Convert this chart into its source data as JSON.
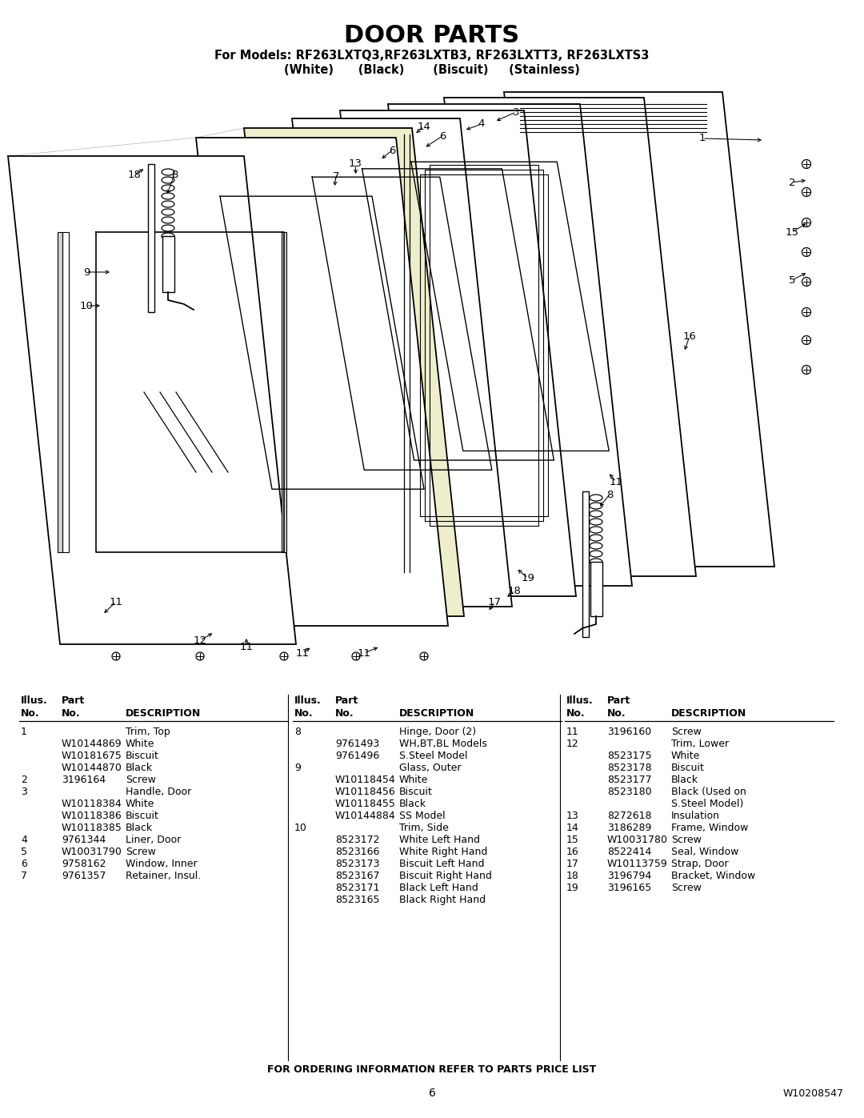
{
  "title": "DOOR PARTS",
  "subtitle1": "For Models: RF263LXTQ3,RF263LXTB3, RF263LXTT3, RF263LXTS3",
  "subtitle2": "(White)      (Black)       (Biscuit)     (Stainless)",
  "bg_color": "#ffffff",
  "title_fontsize": 22,
  "subtitle_fontsize": 11,
  "footer_note": "FOR ORDERING INFORMATION REFER TO PARTS PRICE LIST",
  "page_number": "6",
  "doc_number": "W10208547",
  "parts_col1": [
    [
      "1",
      "",
      "Trim, Top"
    ],
    [
      "",
      "W10144869",
      "White"
    ],
    [
      "",
      "W10181675",
      "Biscuit"
    ],
    [
      "",
      "W10144870",
      "Black"
    ],
    [
      "2",
      "3196164",
      "Screw"
    ],
    [
      "3",
      "",
      "Handle, Door"
    ],
    [
      "",
      "W10118384",
      "White"
    ],
    [
      "",
      "W10118386",
      "Biscuit"
    ],
    [
      "",
      "W10118385",
      "Black"
    ],
    [
      "4",
      "9761344",
      "Liner, Door"
    ],
    [
      "5",
      "W10031790",
      "Screw"
    ],
    [
      "6",
      "9758162",
      "Window, Inner"
    ],
    [
      "7",
      "9761357",
      "Retainer, Insul."
    ]
  ],
  "parts_col2": [
    [
      "8",
      "",
      "Hinge, Door (2)"
    ],
    [
      "",
      "9761493",
      "WH,BT,BL Models"
    ],
    [
      "",
      "9761496",
      "S.Steel Model"
    ],
    [
      "9",
      "",
      "Glass, Outer"
    ],
    [
      "",
      "W10118454",
      "White"
    ],
    [
      "",
      "W10118456",
      "Biscuit"
    ],
    [
      "",
      "W10118455",
      "Black"
    ],
    [
      "",
      "W10144884",
      "SS Model"
    ],
    [
      "10",
      "",
      "Trim, Side"
    ],
    [
      "",
      "8523172",
      "White Left Hand"
    ],
    [
      "",
      "8523166",
      "White Right Hand"
    ],
    [
      "",
      "8523173",
      "Biscuit Left Hand"
    ],
    [
      "",
      "8523167",
      "Biscuit Right Hand"
    ],
    [
      "",
      "8523171",
      "Black Left Hand"
    ],
    [
      "",
      "8523165",
      "Black Right Hand"
    ]
  ],
  "parts_col3": [
    [
      "11",
      "3196160",
      "Screw"
    ],
    [
      "12",
      "",
      "Trim, Lower"
    ],
    [
      "",
      "8523175",
      "White"
    ],
    [
      "",
      "8523178",
      "Biscuit"
    ],
    [
      "",
      "8523177",
      "Black"
    ],
    [
      "",
      "8523180",
      "Black (Used on"
    ],
    [
      "",
      "",
      "S.Steel Model)"
    ],
    [
      "13",
      "8272618",
      "Insulation"
    ],
    [
      "14",
      "3186289",
      "Frame, Window"
    ],
    [
      "15",
      "W10031780",
      "Screw"
    ],
    [
      "16",
      "8522414",
      "Seal, Window"
    ],
    [
      "17",
      "W10113759",
      "Strap, Door"
    ],
    [
      "18",
      "3196794",
      "Bracket, Window"
    ],
    [
      "19",
      "3196165",
      "Screw"
    ]
  ]
}
